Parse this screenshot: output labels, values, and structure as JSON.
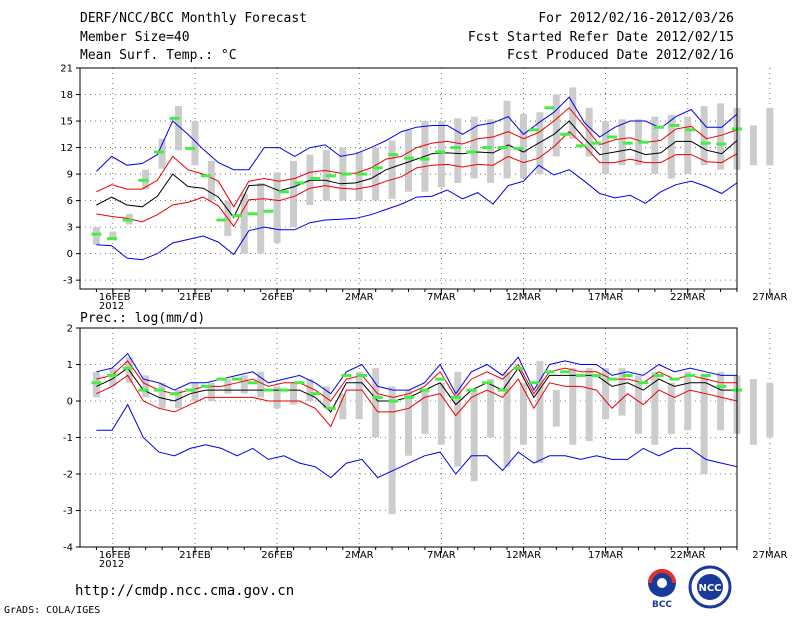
{
  "header": {
    "title": "DERF/NCC/BCC Monthly Forecast",
    "member_size": "Member Size=40",
    "variable1": "Mean Surf. Temp.: °C",
    "for_range": "For 2012/02/16-2012/03/26",
    "fcst_started": "Fcst Started Refer Date 2012/02/15",
    "fcst_produced": "Fcst Produced Date 2012/02/16"
  },
  "footer": {
    "url": "http://cmdp.ncc.cma.gov.cn",
    "grads_credit": "GrADS: COLA/IGES",
    "logo_bcc": "BCC",
    "logo_ncc": "NCC"
  },
  "colors": {
    "blue": "#0000ee",
    "red": "#ee0000",
    "black": "#000000",
    "green": "#44ee44",
    "bar": "#cccccc"
  },
  "chart_data": [
    {
      "type": "line",
      "title": "Mean Surf. Temp.: °C",
      "x_tick_labels": [
        "16FEB",
        "21FEB",
        "26FEB",
        "2MAR",
        "7MAR",
        "12MAR",
        "17MAR",
        "22MAR",
        "27MAR"
      ],
      "x_year_label": "2012",
      "ylim": [
        -4,
        21
      ],
      "y_ticks": [
        -3,
        0,
        3,
        6,
        9,
        12,
        15,
        18,
        21
      ],
      "days": 40,
      "series": [
        {
          "name": "blue_max",
          "values": [
            9.3,
            11,
            10,
            10.2,
            11.2,
            15,
            13.5,
            11.8,
            10.3,
            9.5,
            9.5,
            12,
            12,
            11,
            12,
            12.3,
            11,
            11.3,
            12,
            12.8,
            13.8,
            14.3,
            14.5,
            14.5,
            13.5,
            14.5,
            14.8,
            15.5,
            13.5,
            14.8,
            16,
            17.7,
            14.8,
            13.2,
            14.3,
            15,
            15,
            14.2,
            15.5,
            16.3,
            14.3,
            14.3,
            15.8
          ]
        },
        {
          "name": "red_upper",
          "values": [
            7,
            7.8,
            7.3,
            7.3,
            8.3,
            11,
            9.5,
            9,
            8.2,
            5.3,
            8.2,
            8.5,
            8.2,
            8.5,
            9.2,
            9.4,
            9.1,
            9.1,
            9.7,
            10.7,
            11,
            12,
            12.5,
            12.7,
            12.4,
            13,
            13.2,
            13.8,
            13,
            13.7,
            15,
            16.5,
            14.4,
            12.3,
            12.9,
            13.1,
            12.6,
            12.8,
            14.1,
            14.4,
            13,
            13.4,
            14
          ]
        },
        {
          "name": "ensemble_mean",
          "values": [
            5.5,
            6.4,
            5.5,
            5.3,
            6.5,
            9,
            7.6,
            7.4,
            6.4,
            4.1,
            7.7,
            7.8,
            7.1,
            7.6,
            8.3,
            8.3,
            7.9,
            8,
            8.5,
            9.5,
            10.1,
            10.7,
            11.3,
            11.4,
            11.3,
            11.5,
            11.4,
            12.3,
            11.5,
            12.5,
            13.5,
            15,
            13,
            11.2,
            11.5,
            11.8,
            11.2,
            11.4,
            12.7,
            12.7,
            11.7,
            11.3,
            12.8
          ]
        },
        {
          "name": "red_lower",
          "values": [
            4.5,
            4.2,
            4,
            3.6,
            4.4,
            5.5,
            5.8,
            6.4,
            5.4,
            3.1,
            6.1,
            6.2,
            6,
            6.5,
            7.4,
            7.7,
            7.4,
            7.3,
            7.6,
            8.2,
            8.7,
            9.7,
            10,
            10.1,
            9.8,
            10.1,
            10,
            11,
            10.3,
            10.8,
            12.1,
            13.8,
            12.2,
            10.3,
            10.3,
            10.7,
            10.3,
            10.3,
            11.2,
            11.2,
            10.4,
            10.3,
            11.3
          ]
        },
        {
          "name": "blue_min",
          "values": [
            1,
            0.9,
            -0.5,
            -0.7,
            0,
            1.2,
            1.6,
            2,
            1.3,
            -0.1,
            2.6,
            3,
            2.7,
            2.7,
            3.5,
            3.8,
            3.9,
            4,
            4.4,
            5,
            5.6,
            6.4,
            6.5,
            7.2,
            6.2,
            6.9,
            5.6,
            7.7,
            8.2,
            10,
            8.9,
            9.5,
            8.2,
            6.8,
            6.3,
            6.6,
            5.7,
            7,
            7.8,
            8.2,
            7.6,
            6.8,
            8
          ]
        }
      ],
      "observed_dashes": [
        2.2,
        1.7,
        3.8,
        8.3,
        11.5,
        15.3,
        11.9,
        8.8,
        3.8,
        4.3,
        4.5,
        4.8,
        7,
        8,
        8.5,
        8.8,
        9,
        9,
        9.7,
        11.2,
        10.8,
        10.7,
        11.5,
        12,
        11.5,
        12,
        12,
        11.9,
        14,
        16.5,
        13.5,
        12.2,
        12.5,
        13.2,
        12.5,
        12.6,
        14.3,
        14.5,
        14,
        12.5,
        12.4,
        14.1
      ],
      "bars": [
        [
          1,
          3
        ],
        [
          1.5,
          2.5
        ],
        [
          3.3,
          4.5
        ],
        [
          7.3,
          9.5
        ],
        [
          9.6,
          13
        ],
        [
          11.7,
          16.7
        ],
        [
          10,
          15
        ],
        [
          6,
          10.5
        ],
        [
          2,
          6
        ],
        [
          0,
          6.8
        ],
        [
          0,
          8
        ],
        [
          1.2,
          9.2
        ],
        [
          3,
          10.5
        ],
        [
          5.5,
          11.2
        ],
        [
          6,
          11.7
        ],
        [
          6,
          12
        ],
        [
          6,
          11.5
        ],
        [
          6,
          12
        ],
        [
          6.2,
          12.8
        ],
        [
          7,
          14
        ],
        [
          7,
          15
        ],
        [
          7.5,
          15
        ],
        [
          8,
          15.3
        ],
        [
          8.5,
          15.5
        ],
        [
          8,
          15.2
        ],
        [
          8.5,
          17.3
        ],
        [
          8.5,
          15.8
        ],
        [
          9,
          16
        ],
        [
          11,
          18
        ],
        [
          13,
          18.8
        ],
        [
          11,
          16.5
        ],
        [
          9,
          15
        ],
        [
          10,
          15.2
        ],
        [
          10,
          15.2
        ],
        [
          9,
          15.5
        ],
        [
          8.5,
          15.7
        ],
        [
          9,
          15.5
        ],
        [
          10,
          16.7
        ],
        [
          9.5,
          17
        ],
        [
          9.5,
          16.5
        ],
        [
          10,
          14.5
        ],
        [
          10,
          16.5
        ]
      ]
    },
    {
      "type": "line",
      "title": "Prec.: log(mm/d)",
      "x_tick_labels": [
        "16FEB",
        "21FEB",
        "26FEB",
        "2MAR",
        "7MAR",
        "12MAR",
        "17MAR",
        "22MAR",
        "27MAR"
      ],
      "x_year_label": "2012",
      "ylim": [
        -4,
        2
      ],
      "y_ticks": [
        -4,
        -3,
        -2,
        -1,
        0,
        1,
        2
      ],
      "days": 40,
      "series": [
        {
          "name": "blue_max",
          "values": [
            0.8,
            0.9,
            1.3,
            0.6,
            0.5,
            0.3,
            0.5,
            0.5,
            0.6,
            0.7,
            0.8,
            0.5,
            0.6,
            0.7,
            0.5,
            0.2,
            0.8,
            1,
            0.4,
            0.3,
            0.3,
            0.5,
            1,
            0.2,
            0.8,
            1,
            0.7,
            1.2,
            0.3,
            1,
            1.1,
            1,
            1,
            0.7,
            0.8,
            0.7,
            1,
            0.8,
            0.9,
            0.8,
            0.7,
            0.7
          ]
        },
        {
          "name": "red_upper",
          "values": [
            0.6,
            0.7,
            1.1,
            0.5,
            0.3,
            0.2,
            0.3,
            0.4,
            0.4,
            0.5,
            0.6,
            0.4,
            0.5,
            0.5,
            0.3,
            0,
            0.6,
            0.7,
            0.2,
            0.1,
            0.2,
            0.4,
            0.8,
            0.1,
            0.6,
            0.8,
            0.6,
            1,
            0.2,
            0.8,
            0.9,
            0.8,
            0.8,
            0.6,
            0.6,
            0.5,
            0.8,
            0.6,
            0.7,
            0.6,
            0.5,
            0.5
          ]
        },
        {
          "name": "ensemble_mean",
          "values": [
            0.4,
            0.6,
            0.9,
            0.3,
            0.1,
            0,
            0.2,
            0.3,
            0.3,
            0.3,
            0.3,
            0.3,
            0.3,
            0.3,
            0.1,
            -0.3,
            0.5,
            0.5,
            0,
            0,
            0.1,
            0.3,
            0.5,
            -0.1,
            0.3,
            0.5,
            0.3,
            0.9,
            0.1,
            0.7,
            0.7,
            0.7,
            0.7,
            0.4,
            0.5,
            0.3,
            0.6,
            0.4,
            0.5,
            0.5,
            0.3,
            0.3
          ]
        },
        {
          "name": "red_lower",
          "values": [
            0.2,
            0.4,
            0.7,
            0,
            -0.2,
            -0.3,
            -0.1,
            0.1,
            0.1,
            0.1,
            0.1,
            0,
            0,
            0,
            -0.2,
            -0.7,
            0.3,
            0.3,
            -0.3,
            -0.3,
            -0.2,
            0.1,
            0.2,
            -0.4,
            0.1,
            0.3,
            0.1,
            0.6,
            -0.2,
            0.5,
            0.4,
            0.4,
            0.3,
            -0.2,
            0.2,
            -0.1,
            0.3,
            0.1,
            0.3,
            0.2,
            0.1,
            0
          ]
        },
        {
          "name": "blue_min",
          "values": [
            -0.8,
            -0.8,
            -0.1,
            -1,
            -1.4,
            -1.5,
            -1.3,
            -1.2,
            -1.3,
            -1.5,
            -1.3,
            -1.6,
            -1.5,
            -1.7,
            -1.8,
            -2.1,
            -1.7,
            -1.6,
            -2.1,
            -1.9,
            -1.7,
            -1.5,
            -1.4,
            -2,
            -1.5,
            -1.5,
            -1.9,
            -1.4,
            -1.7,
            -1.5,
            -1.5,
            -1.6,
            -1.5,
            -1.6,
            -1.6,
            -1.3,
            -1.5,
            -1.3,
            -1.3,
            -1.6,
            -1.7,
            -1.8
          ]
        }
      ],
      "observed_dashes": [
        0.5,
        0.7,
        0.9,
        0.3,
        0.3,
        0.2,
        0.3,
        0.4,
        0.6,
        0.6,
        0.5,
        0.3,
        0.3,
        0.5,
        0.2,
        -0.2,
        0.7,
        0.7,
        0.1,
        0,
        0.1,
        0.3,
        0.6,
        0.1,
        0.3,
        0.5,
        0.3,
        0.9,
        0.5,
        0.8,
        0.8,
        0.7,
        0.7,
        0.6,
        0.7,
        0.5,
        0.7,
        0.6,
        0.7,
        0.7,
        0.4,
        0.3
      ],
      "bars": [
        [
          0.1,
          0.8
        ],
        [
          0.4,
          0.9
        ],
        [
          0.5,
          1.2
        ],
        [
          0.1,
          0.7
        ],
        [
          -0.2,
          0.5
        ],
        [
          -0.2,
          0.3
        ],
        [
          0,
          0.5
        ],
        [
          0,
          0.5
        ],
        [
          0.2,
          0.6
        ],
        [
          0.2,
          0.7
        ],
        [
          0.1,
          0.8
        ],
        [
          -0.2,
          0.4
        ],
        [
          -0.1,
          0.5
        ],
        [
          0,
          0.6
        ],
        [
          -0.2,
          0.4
        ],
        [
          -0.5,
          0.2
        ],
        [
          -0.5,
          0.8
        ],
        [
          -1,
          0.9
        ],
        [
          -3.1,
          0.4
        ],
        [
          -1.5,
          0.3
        ],
        [
          -0.9,
          0.3
        ],
        [
          -1.2,
          0.5
        ],
        [
          -1.8,
          0.8
        ],
        [
          -2.2,
          0.3
        ],
        [
          -1,
          0.6
        ],
        [
          -1.8,
          0.8
        ],
        [
          -1.2,
          0.5
        ],
        [
          -1.7,
          1.1
        ],
        [
          -0.7,
          0.3
        ],
        [
          -1.2,
          0.9
        ],
        [
          -1.1,
          0.9
        ],
        [
          -0.5,
          0.9
        ],
        [
          -0.4,
          0.9
        ],
        [
          -0.9,
          0.7
        ],
        [
          -1.2,
          0.8
        ],
        [
          -0.9,
          0.5
        ],
        [
          -0.8,
          0.8
        ],
        [
          -2,
          0.7
        ],
        [
          -0.8,
          0.8
        ],
        [
          -0.9,
          0.7
        ],
        [
          -1.2,
          0.6
        ],
        [
          -1,
          0.5
        ]
      ]
    }
  ]
}
